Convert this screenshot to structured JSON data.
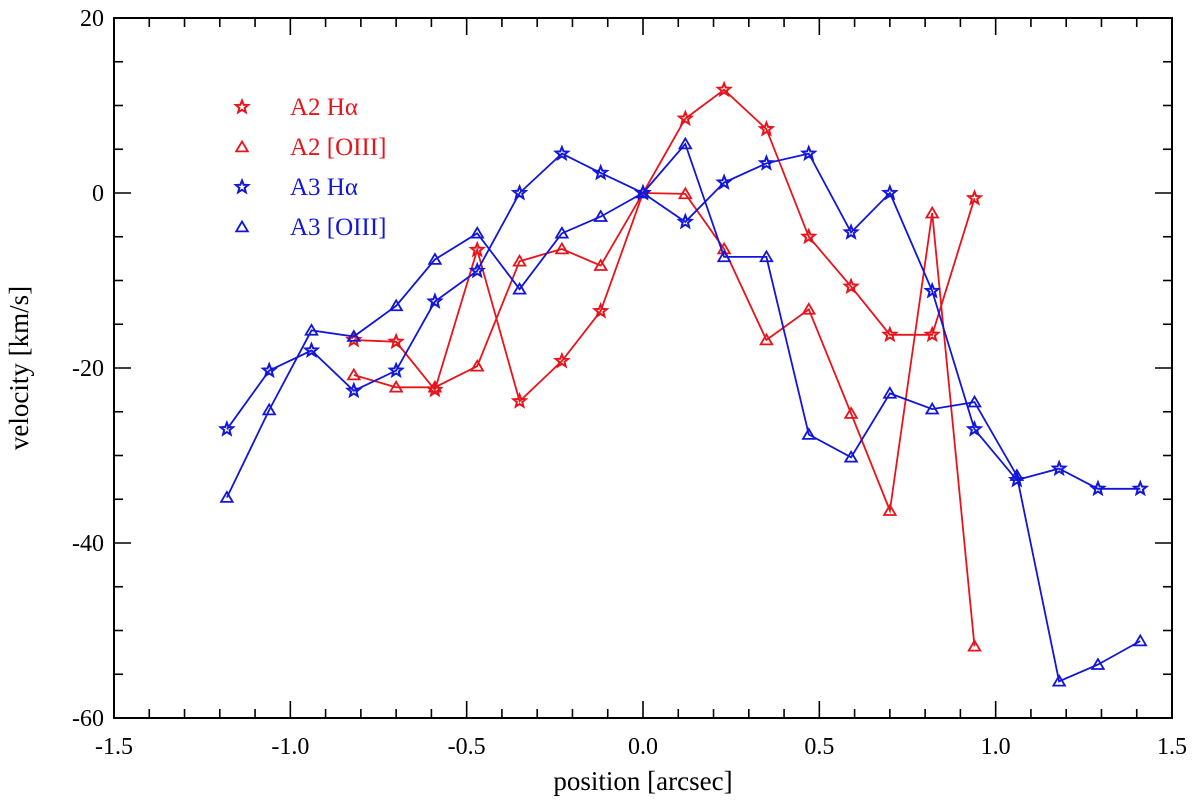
{
  "chart_data": {
    "type": "line",
    "xlabel": "position [arcsec]",
    "ylabel": "velocity [km/s]",
    "xlim": [
      -1.5,
      1.5
    ],
    "ylim": [
      -60,
      20
    ],
    "x_ticks": [
      "-1.5",
      "-1.0",
      "-0.5",
      "0.0",
      "0.5",
      "1.0",
      "1.5"
    ],
    "y_ticks": [
      "20",
      "0",
      "-20",
      "-40",
      "-60"
    ],
    "legend_position": "top-left",
    "series": [
      {
        "name": "A2",
        "name_line": "Hα",
        "marker": "star",
        "color": "#e8141b",
        "x": [
          -0.82,
          -0.7,
          -0.59,
          -0.47,
          -0.35,
          -0.23,
          -0.12,
          0.0,
          0.12,
          0.23,
          0.35,
          0.47,
          0.59,
          0.7,
          0.82,
          0.94
        ],
        "y": [
          -16.8,
          -17.0,
          -22.5,
          -6.5,
          -23.8,
          -19.2,
          -13.5,
          0.0,
          8.5,
          11.8,
          7.3,
          -5.0,
          -10.7,
          -16.2,
          -16.2,
          -0.6
        ]
      },
      {
        "name": "A2",
        "name_line": "[OIII]",
        "marker": "triangle",
        "color": "#e8141b",
        "x": [
          -0.82,
          -0.7,
          -0.59,
          -0.47,
          -0.35,
          -0.23,
          -0.12,
          0.0,
          0.12,
          0.23,
          0.35,
          0.47,
          0.59,
          0.7,
          0.82,
          0.94
        ],
        "y": [
          -20.8,
          -22.2,
          -22.2,
          -19.8,
          -7.8,
          -6.4,
          -8.3,
          0.0,
          -0.1,
          -6.4,
          -16.8,
          -13.3,
          -25.2,
          -36.3,
          -2.3,
          -51.8
        ]
      },
      {
        "name": "A3",
        "name_line": "Hα",
        "marker": "star",
        "color": "#1216d8",
        "x": [
          -1.18,
          -1.06,
          -0.94,
          -0.82,
          -0.7,
          -0.59,
          -0.47,
          -0.35,
          -0.23,
          -0.12,
          0.0,
          0.12,
          0.23,
          0.35,
          0.47,
          0.59,
          0.7,
          0.82,
          0.94,
          1.06,
          1.18,
          1.29,
          1.41
        ],
        "y": [
          -27.0,
          -20.3,
          -18.0,
          -22.6,
          -20.3,
          -12.4,
          -8.9,
          0.0,
          4.5,
          2.3,
          0.0,
          -3.3,
          1.2,
          3.4,
          4.5,
          -4.5,
          0.0,
          -11.2,
          -27.0,
          -32.8,
          -31.5,
          -33.8,
          -33.8
        ]
      },
      {
        "name": "A3",
        "name_line": "[OIII]",
        "marker": "triangle",
        "color": "#1216d8",
        "x": [
          -1.18,
          -1.06,
          -0.94,
          -0.82,
          -0.7,
          -0.59,
          -0.47,
          -0.35,
          -0.23,
          -0.12,
          0.0,
          0.12,
          0.23,
          0.35,
          0.47,
          0.59,
          0.7,
          0.82,
          0.94,
          1.06,
          1.18,
          1.29,
          1.41
        ],
        "y": [
          -34.8,
          -24.8,
          -15.7,
          -16.4,
          -12.9,
          -7.6,
          -4.6,
          -11.0,
          -4.6,
          -2.7,
          0.0,
          5.6,
          -7.3,
          -7.3,
          -27.6,
          -30.2,
          -22.9,
          -24.7,
          -23.9,
          -32.3,
          -55.8,
          -53.9,
          -51.2
        ]
      }
    ]
  }
}
